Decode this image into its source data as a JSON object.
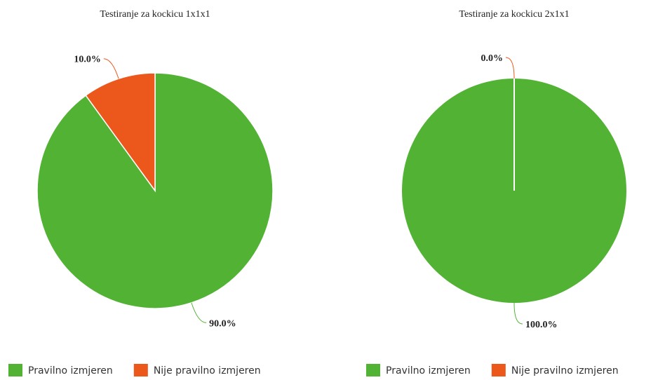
{
  "chart_data": [
    {
      "type": "pie",
      "title": "Testiranje za kockicu 1x1x1",
      "categories": [
        "Pravilno izmjeren",
        "Nije pravilno izmjeren"
      ],
      "values": [
        90,
        10
      ],
      "value_labels": [
        "90.0%",
        "10.0%"
      ],
      "colors": [
        "#52b234",
        "#ec571b"
      ],
      "legend": "bottom"
    },
    {
      "type": "pie",
      "title": "Testiranje za kockicu 2x1x1",
      "categories": [
        "Pravilno izmjeren",
        "Nije pravilno izmjeren"
      ],
      "values": [
        100,
        0
      ],
      "value_labels": [
        "100.0%",
        "0.0%"
      ],
      "colors": [
        "#52b234",
        "#ec571b"
      ],
      "legend": "bottom"
    }
  ]
}
